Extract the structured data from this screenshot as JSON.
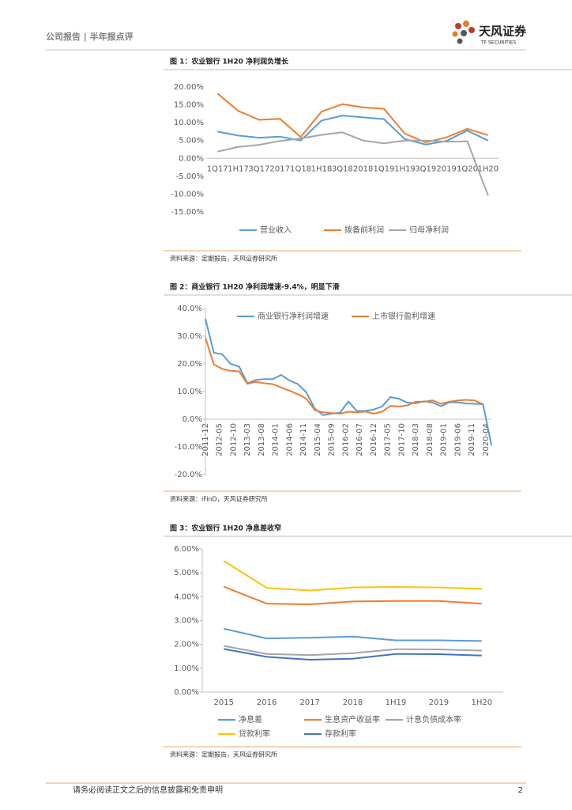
{
  "header": {
    "left": "公司报告 | 半年报点评",
    "logo_text": "天风证券",
    "logo_sub": "TF SECURITIES"
  },
  "chart_data": [
    {
      "type": "line",
      "title": "图 1：农业银行 1H20 净利润负增长",
      "source": "资料来源：定期报告，天风证券研究所",
      "categories": [
        "1Q17",
        "1H17",
        "3Q17",
        "2017",
        "1Q18",
        "1H18",
        "3Q18",
        "2018",
        "1Q19",
        "1H19",
        "3Q19",
        "2019",
        "1Q20",
        "1H20"
      ],
      "ylim": [
        -15,
        20
      ],
      "yticks": [
        {
          "value": -15,
          "label": "-15.00%"
        },
        {
          "value": -10,
          "label": "-10.00%"
        },
        {
          "value": -5,
          "label": "-5.00%"
        },
        {
          "value": 0,
          "label": "0.00%"
        },
        {
          "value": 5,
          "label": "5.00%"
        },
        {
          "value": 10,
          "label": "10.00%"
        },
        {
          "value": 15,
          "label": "15.00%"
        },
        {
          "value": 20,
          "label": "20.00%"
        }
      ],
      "grid": false,
      "legend": "bottom",
      "series": [
        {
          "name": "营业收入",
          "color": "#5b9bd5",
          "values": [
            7.5,
            6.4,
            5.8,
            6.1,
            5.0,
            10.6,
            12.0,
            11.5,
            11.0,
            5.4,
            3.9,
            4.9,
            7.8,
            5.0
          ]
        },
        {
          "name": "拨备前利润",
          "color": "#ed7d31",
          "values": [
            18.2,
            13.3,
            10.8,
            11.1,
            6.0,
            13.1,
            15.2,
            14.3,
            13.9,
            6.9,
            4.5,
            5.9,
            8.3,
            6.5
          ]
        },
        {
          "name": "归母净利润",
          "color": "#a5a5a5",
          "values": [
            1.9,
            3.2,
            3.8,
            4.9,
            5.6,
            6.6,
            7.3,
            5.0,
            4.2,
            5.0,
            5.0,
            4.7,
            4.8,
            -10.4
          ]
        }
      ]
    },
    {
      "type": "line",
      "title": "图 2：商业银行 1H20 净利润增速-9.4%，明显下滑",
      "source": "资料来源：iFinD，天风证券研究所",
      "x": [
        "2011-12",
        "2012-03",
        "2012-06",
        "2012-09",
        "2012-12",
        "2013-03",
        "2013-06",
        "2013-09",
        "2013-12",
        "2014-03",
        "2014-06",
        "2014-09",
        "2014-12",
        "2015-03",
        "2015-06",
        "2015-09",
        "2015-12",
        "2016-03",
        "2016-06",
        "2016-09",
        "2016-12",
        "2017-03",
        "2017-06",
        "2017-09",
        "2017-12",
        "2018-03",
        "2018-06",
        "2018-09",
        "2018-12",
        "2019-03",
        "2019-06",
        "2019-09",
        "2019-12",
        "2020-03",
        "2020-06"
      ],
      "xlim": [
        "2011-12",
        "2020-06"
      ],
      "xticks": [
        "2011-12",
        "2012-05",
        "2012-10",
        "2013-03",
        "2013-08",
        "2014-01",
        "2014-06",
        "2014-11",
        "2015-04",
        "2015-09",
        "2016-02",
        "2016-07",
        "2016-12",
        "2017-05",
        "2017-10",
        "2018-03",
        "2018-08",
        "2019-01",
        "2019-06",
        "2019-11",
        "2020-04"
      ],
      "ylim": [
        -20,
        40
      ],
      "yticks": [
        {
          "value": -20,
          "label": "-20.0%"
        },
        {
          "value": -10,
          "label": "-10.0%"
        },
        {
          "value": 0,
          "label": "0.0%"
        },
        {
          "value": 10,
          "label": "10.0%"
        },
        {
          "value": 20,
          "label": "20.0%"
        },
        {
          "value": 30,
          "label": "30.0%"
        },
        {
          "value": 40,
          "label": "40.0%"
        }
      ],
      "grid": false,
      "legend": "top",
      "series": [
        {
          "name": "商业银行净利润增速",
          "color": "#5b9bd5",
          "values": [
            36.3,
            24.0,
            23.5,
            20.0,
            19.0,
            13.0,
            14.2,
            14.5,
            14.5,
            16.0,
            14.0,
            12.7,
            9.7,
            3.8,
            1.5,
            2.0,
            2.4,
            6.4,
            3.0,
            3.0,
            3.5,
            4.6,
            8.0,
            7.4,
            6.0,
            5.8,
            6.5,
            6.0,
            4.7,
            6.1,
            6.1,
            5.7,
            5.6,
            5.4,
            -9.4
          ]
        },
        {
          "name": "上市银行盈利增速",
          "color": "#ed7d31",
          "values": [
            29.5,
            19.8,
            18.2,
            17.5,
            17.3,
            12.8,
            13.5,
            13.0,
            12.7,
            11.5,
            10.3,
            9.0,
            7.4,
            3.3,
            2.5,
            2.2,
            2.0,
            2.7,
            2.5,
            2.8,
            2.0,
            2.7,
            4.8,
            4.6,
            5.0,
            6.3,
            6.3,
            6.8,
            5.6,
            6.3,
            6.8,
            7.0,
            6.8,
            5.4,
            null
          ]
        }
      ]
    },
    {
      "type": "line",
      "title": "图 3：农业银行 1H20 净息差收窄",
      "source": "资料来源：定期报告，天风证券研究所",
      "categories": [
        "2015",
        "2016",
        "2017",
        "2018",
        "1H19",
        "2019",
        "1H20"
      ],
      "ylim": [
        0,
        6
      ],
      "yticks": [
        {
          "value": 0,
          "label": "0.00%"
        },
        {
          "value": 1,
          "label": "1.00%"
        },
        {
          "value": 2,
          "label": "2.00%"
        },
        {
          "value": 3,
          "label": "3.00%"
        },
        {
          "value": 4,
          "label": "4.00%"
        },
        {
          "value": 5,
          "label": "5.00%"
        },
        {
          "value": 6,
          "label": "6.00%"
        }
      ],
      "grid": false,
      "legend": "bottom",
      "series": [
        {
          "name": "净息差",
          "color": "#5b9bd5",
          "values": [
            2.66,
            2.25,
            2.28,
            2.33,
            2.17,
            2.17,
            2.14
          ]
        },
        {
          "name": "生息资产收益率",
          "color": "#ed7d31",
          "values": [
            4.42,
            3.71,
            3.68,
            3.8,
            3.82,
            3.82,
            3.71
          ]
        },
        {
          "name": "计息负债成本率",
          "color": "#a5a5a5",
          "values": [
            1.94,
            1.6,
            1.55,
            1.63,
            1.8,
            1.79,
            1.74
          ]
        },
        {
          "name": "贷款利率",
          "color": "#ffc000",
          "values": [
            5.5,
            4.37,
            4.26,
            4.39,
            4.41,
            4.39,
            4.33
          ]
        },
        {
          "name": "存款利率",
          "color": "#4472c4",
          "values": [
            1.81,
            1.48,
            1.36,
            1.4,
            1.6,
            1.59,
            1.53
          ]
        }
      ]
    }
  ],
  "footer": {
    "disclaimer": "请务必阅读正文之后的信息披露和免责申明",
    "page": "2"
  }
}
